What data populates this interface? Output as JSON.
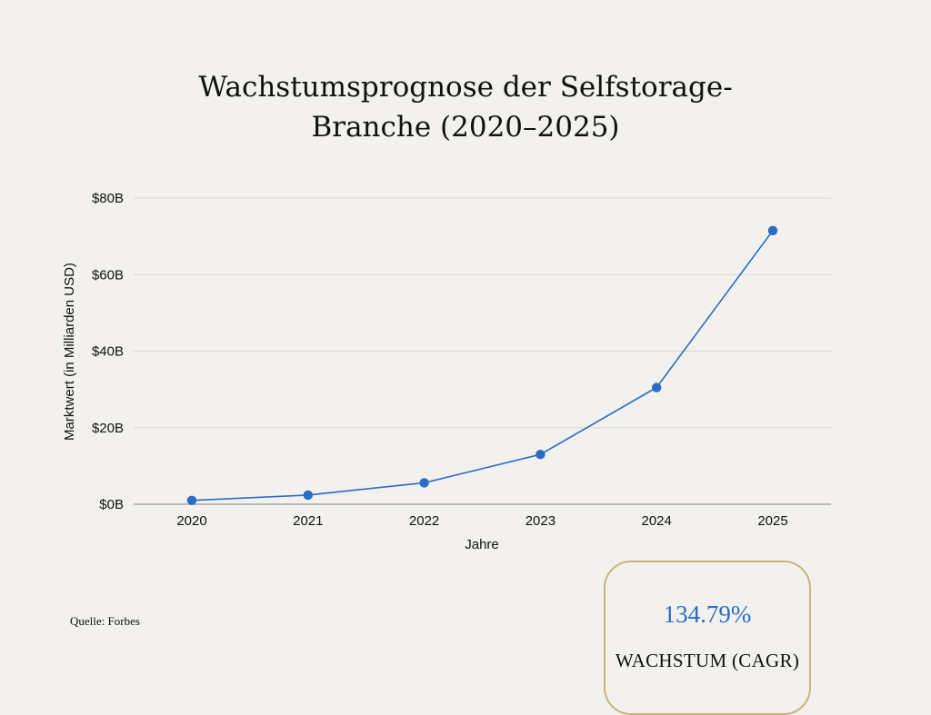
{
  "title_lines": [
    "Wachstumsprognose der Selfstorage-",
    "Branche (2020–2025)"
  ],
  "source": "Quelle: Forbes",
  "cagr": {
    "value": "134.79%",
    "label": "WACHSTUM (CAGR)"
  },
  "chart_data": {
    "type": "line",
    "title": "Wachstumsprognose der Selfstorage-Branche (2020–2025)",
    "xlabel": "Jahre",
    "ylabel": "Marktwert (in Milliarden USD)",
    "categories": [
      "2020",
      "2021",
      "2022",
      "2023",
      "2024",
      "2025"
    ],
    "values": [
      1.0,
      2.4,
      5.6,
      13.0,
      30.5,
      71.5
    ],
    "ylim": [
      0,
      80
    ],
    "yticks": [
      0,
      20,
      40,
      60,
      80
    ],
    "ytick_labels": [
      "$0B",
      "$20B",
      "$40B",
      "$60B",
      "$80B"
    ],
    "grid": true,
    "line_color": "#2b6cc4"
  }
}
